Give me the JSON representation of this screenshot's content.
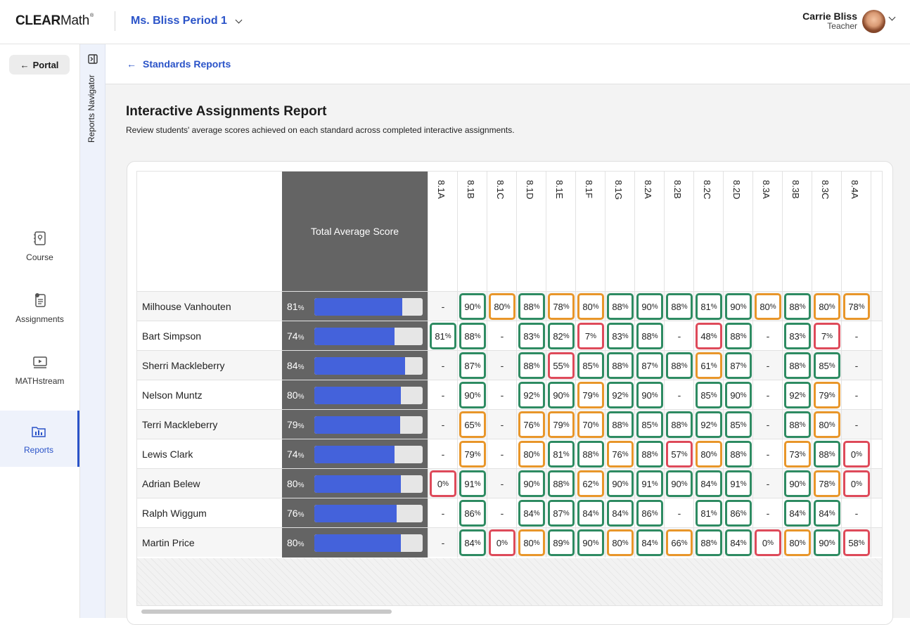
{
  "app": {
    "logo_bold": "CLEAR",
    "logo_light": "Math",
    "logo_mark": "®",
    "class_name": "Ms. Bliss Period 1"
  },
  "user": {
    "name": "Carrie Bliss",
    "role": "Teacher"
  },
  "nav": {
    "portal_label": "Portal",
    "items": [
      {
        "label": "Course",
        "icon": "course-icon"
      },
      {
        "label": "Assignments",
        "icon": "assignments-icon"
      },
      {
        "label": "MATHstream",
        "icon": "video-icon"
      },
      {
        "label": "Reports",
        "icon": "reports-icon",
        "active": true
      }
    ]
  },
  "reports_navigator": {
    "label": "Reports Navigator"
  },
  "breadcrumb": {
    "label": "Standards Reports"
  },
  "page": {
    "title": "Interactive Assignments Report",
    "subtitle": "Review students' average scores achieved on each standard across completed interactive assignments."
  },
  "colors": {
    "green": "#2e8b62",
    "orange": "#e8962a",
    "red": "#de4a5a",
    "accent": "#2a53c8",
    "bar": "#4462db"
  },
  "table": {
    "total_header": "Total Average Score",
    "standards": [
      "8.1A",
      "8.1B",
      "8.1C",
      "8.1D",
      "8.1E",
      "8.1F",
      "8.1G",
      "8.2A",
      "8.2B",
      "8.2C",
      "8.2D",
      "8.3A",
      "8.3B",
      "8.3C",
      "8.4A"
    ],
    "rows": [
      {
        "name": "Milhouse Vanhouten",
        "total": 81,
        "scores": [
          {
            "v": null
          },
          {
            "v": 90,
            "c": "g"
          },
          {
            "v": 80,
            "c": "o"
          },
          {
            "v": 88,
            "c": "g"
          },
          {
            "v": 78,
            "c": "o"
          },
          {
            "v": 80,
            "c": "o"
          },
          {
            "v": 88,
            "c": "g"
          },
          {
            "v": 90,
            "c": "g"
          },
          {
            "v": 88,
            "c": "g"
          },
          {
            "v": 81,
            "c": "g"
          },
          {
            "v": 90,
            "c": "g"
          },
          {
            "v": 80,
            "c": "o"
          },
          {
            "v": 88,
            "c": "g"
          },
          {
            "v": 80,
            "c": "o"
          },
          {
            "v": 78,
            "c": "o"
          }
        ]
      },
      {
        "name": "Bart Simpson",
        "total": 74,
        "scores": [
          {
            "v": 81,
            "c": "g"
          },
          {
            "v": 88,
            "c": "g"
          },
          {
            "v": null
          },
          {
            "v": 83,
            "c": "g"
          },
          {
            "v": 82,
            "c": "g"
          },
          {
            "v": 7,
            "c": "r"
          },
          {
            "v": 83,
            "c": "g"
          },
          {
            "v": 88,
            "c": "g"
          },
          {
            "v": null
          },
          {
            "v": 48,
            "c": "r"
          },
          {
            "v": 88,
            "c": "g"
          },
          {
            "v": null
          },
          {
            "v": 83,
            "c": "g"
          },
          {
            "v": 7,
            "c": "r"
          },
          {
            "v": null
          }
        ]
      },
      {
        "name": "Sherri Mackleberry",
        "total": 84,
        "scores": [
          {
            "v": null
          },
          {
            "v": 87,
            "c": "g"
          },
          {
            "v": null
          },
          {
            "v": 88,
            "c": "g"
          },
          {
            "v": 55,
            "c": "r"
          },
          {
            "v": 85,
            "c": "g"
          },
          {
            "v": 88,
            "c": "g"
          },
          {
            "v": 87,
            "c": "g"
          },
          {
            "v": 88,
            "c": "g"
          },
          {
            "v": 61,
            "c": "o"
          },
          {
            "v": 87,
            "c": "g"
          },
          {
            "v": null
          },
          {
            "v": 88,
            "c": "g"
          },
          {
            "v": 85,
            "c": "g"
          },
          {
            "v": null
          }
        ]
      },
      {
        "name": "Nelson Muntz",
        "total": 80,
        "scores": [
          {
            "v": null
          },
          {
            "v": 90,
            "c": "g"
          },
          {
            "v": null
          },
          {
            "v": 92,
            "c": "g"
          },
          {
            "v": 90,
            "c": "g"
          },
          {
            "v": 79,
            "c": "o"
          },
          {
            "v": 92,
            "c": "g"
          },
          {
            "v": 90,
            "c": "g"
          },
          {
            "v": null
          },
          {
            "v": 85,
            "c": "g"
          },
          {
            "v": 90,
            "c": "g"
          },
          {
            "v": null
          },
          {
            "v": 92,
            "c": "g"
          },
          {
            "v": 79,
            "c": "o"
          },
          {
            "v": null
          }
        ]
      },
      {
        "name": "Terri Mackleberry",
        "total": 79,
        "scores": [
          {
            "v": null
          },
          {
            "v": 65,
            "c": "o"
          },
          {
            "v": null
          },
          {
            "v": 76,
            "c": "o"
          },
          {
            "v": 79,
            "c": "o"
          },
          {
            "v": 70,
            "c": "o"
          },
          {
            "v": 88,
            "c": "g"
          },
          {
            "v": 85,
            "c": "g"
          },
          {
            "v": 88,
            "c": "g"
          },
          {
            "v": 92,
            "c": "g"
          },
          {
            "v": 85,
            "c": "g"
          },
          {
            "v": null
          },
          {
            "v": 88,
            "c": "g"
          },
          {
            "v": 80,
            "c": "o"
          },
          {
            "v": null
          }
        ]
      },
      {
        "name": "Lewis Clark",
        "total": 74,
        "scores": [
          {
            "v": null
          },
          {
            "v": 79,
            "c": "o"
          },
          {
            "v": null
          },
          {
            "v": 80,
            "c": "o"
          },
          {
            "v": 81,
            "c": "g"
          },
          {
            "v": 88,
            "c": "g"
          },
          {
            "v": 76,
            "c": "o"
          },
          {
            "v": 88,
            "c": "g"
          },
          {
            "v": 57,
            "c": "r"
          },
          {
            "v": 80,
            "c": "o"
          },
          {
            "v": 88,
            "c": "g"
          },
          {
            "v": null
          },
          {
            "v": 73,
            "c": "o"
          },
          {
            "v": 88,
            "c": "g"
          },
          {
            "v": 0,
            "c": "r"
          }
        ]
      },
      {
        "name": "Adrian Belew",
        "total": 80,
        "scores": [
          {
            "v": 0,
            "c": "r"
          },
          {
            "v": 91,
            "c": "g"
          },
          {
            "v": null
          },
          {
            "v": 90,
            "c": "g"
          },
          {
            "v": 88,
            "c": "g"
          },
          {
            "v": 62,
            "c": "o"
          },
          {
            "v": 90,
            "c": "g"
          },
          {
            "v": 91,
            "c": "g"
          },
          {
            "v": 90,
            "c": "g"
          },
          {
            "v": 84,
            "c": "g"
          },
          {
            "v": 91,
            "c": "g"
          },
          {
            "v": null
          },
          {
            "v": 90,
            "c": "g"
          },
          {
            "v": 78,
            "c": "o"
          },
          {
            "v": 0,
            "c": "r"
          }
        ]
      },
      {
        "name": "Ralph Wiggum",
        "total": 76,
        "scores": [
          {
            "v": null
          },
          {
            "v": 86,
            "c": "g"
          },
          {
            "v": null
          },
          {
            "v": 84,
            "c": "g"
          },
          {
            "v": 87,
            "c": "g"
          },
          {
            "v": 84,
            "c": "g"
          },
          {
            "v": 84,
            "c": "g"
          },
          {
            "v": 86,
            "c": "g"
          },
          {
            "v": null
          },
          {
            "v": 81,
            "c": "g"
          },
          {
            "v": 86,
            "c": "g"
          },
          {
            "v": null
          },
          {
            "v": 84,
            "c": "g"
          },
          {
            "v": 84,
            "c": "g"
          },
          {
            "v": null
          }
        ]
      },
      {
        "name": "Martin Price",
        "total": 80,
        "scores": [
          {
            "v": null
          },
          {
            "v": 84,
            "c": "g"
          },
          {
            "v": 0,
            "c": "r"
          },
          {
            "v": 80,
            "c": "o"
          },
          {
            "v": 89,
            "c": "g"
          },
          {
            "v": 90,
            "c": "g"
          },
          {
            "v": 80,
            "c": "o"
          },
          {
            "v": 84,
            "c": "g"
          },
          {
            "v": 66,
            "c": "o"
          },
          {
            "v": 88,
            "c": "g"
          },
          {
            "v": 84,
            "c": "g"
          },
          {
            "v": 0,
            "c": "r"
          },
          {
            "v": 80,
            "c": "o"
          },
          {
            "v": 90,
            "c": "g"
          },
          {
            "v": 58,
            "c": "r"
          }
        ]
      }
    ]
  }
}
